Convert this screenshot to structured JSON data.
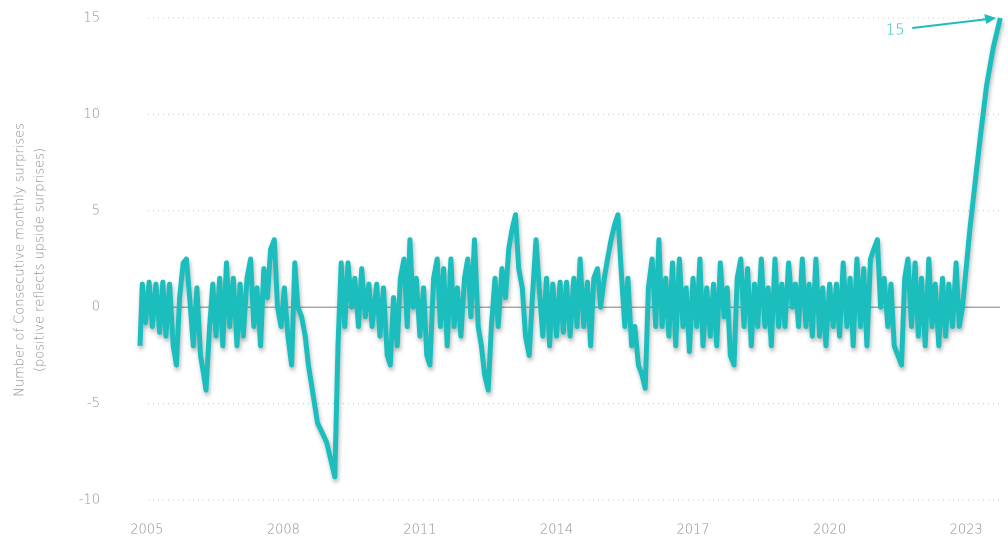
{
  "chart_data": {
    "type": "line",
    "ylabel": [
      "Number of Consecutive monthly surprises",
      "(positive reflects upside surprises)"
    ],
    "xlim": [
      2004.85,
      2023.92
    ],
    "xticks": [
      2005,
      2008,
      2011,
      2014,
      2017,
      2020,
      2023
    ],
    "ylim": [
      -10,
      15
    ],
    "yticks": [
      -10,
      -5,
      0,
      5,
      10,
      15
    ],
    "grid": true,
    "annotation": {
      "text": "15"
    },
    "series": [
      {
        "color": "#1dbdbd",
        "x": [
          2004.85,
          2004.9,
          2004.97,
          2005.05,
          2005.12,
          2005.2,
          2005.28,
          2005.35,
          2005.42,
          2005.5,
          2005.58,
          2005.65,
          2005.72,
          2005.8,
          2005.87,
          2005.95,
          2006.02,
          2006.1,
          2006.18,
          2006.25,
          2006.3,
          2006.38,
          2006.45,
          2006.52,
          2006.6,
          2006.67,
          2006.75,
          2006.82,
          2006.9,
          2006.98,
          2007.05,
          2007.12,
          2007.2,
          2007.28,
          2007.35,
          2007.42,
          2007.5,
          2007.57,
          2007.65,
          2007.72,
          2007.8,
          2007.87,
          2007.95,
          2008.02,
          2008.1,
          2008.18,
          2008.25,
          2008.32,
          2008.4,
          2008.48,
          2008.55,
          2008.65,
          2008.75,
          2008.85,
          2008.95,
          2009.05,
          2009.13,
          2009.2,
          2009.27,
          2009.35,
          2009.42,
          2009.5,
          2009.57,
          2009.65,
          2009.72,
          2009.8,
          2009.88,
          2009.95,
          2010.05,
          2010.12,
          2010.2,
          2010.28,
          2010.35,
          2010.42,
          2010.5,
          2010.57,
          2010.65,
          2010.72,
          2010.78,
          2010.85,
          2010.92,
          2011.0,
          2011.08,
          2011.15,
          2011.22,
          2011.3,
          2011.38,
          2011.45,
          2011.52,
          2011.6,
          2011.68,
          2011.75,
          2011.82,
          2011.9,
          2011.98,
          2012.05,
          2012.12,
          2012.2,
          2012.28,
          2012.35,
          2012.42,
          2012.5,
          2012.57,
          2012.65,
          2012.72,
          2012.8,
          2012.88,
          2012.95,
          2013.02,
          2013.1,
          2013.17,
          2013.25,
          2013.32,
          2013.4,
          2013.47,
          2013.55,
          2013.62,
          2013.7,
          2013.78,
          2013.85,
          2013.92,
          2014.0,
          2014.08,
          2014.15,
          2014.22,
          2014.3,
          2014.38,
          2014.45,
          2014.52,
          2014.6,
          2014.68,
          2014.75,
          2014.82,
          2014.9,
          2014.97,
          2015.05,
          2015.12,
          2015.2,
          2015.28,
          2015.35,
          2015.42,
          2015.5,
          2015.57,
          2015.65,
          2015.72,
          2015.8,
          2015.88,
          2015.95,
          2016.02,
          2016.1,
          2016.18,
          2016.25,
          2016.32,
          2016.4,
          2016.47,
          2016.55,
          2016.62,
          2016.7,
          2016.78,
          2016.85,
          2016.92,
          2017.0,
          2017.08,
          2017.15,
          2017.22,
          2017.3,
          2017.38,
          2017.45,
          2017.52,
          2017.6,
          2017.68,
          2017.75,
          2017.82,
          2017.9,
          2017.97,
          2018.05,
          2018.12,
          2018.2,
          2018.28,
          2018.35,
          2018.42,
          2018.5,
          2018.58,
          2018.65,
          2018.72,
          2018.8,
          2018.88,
          2018.95,
          2019.02,
          2019.1,
          2019.18,
          2019.25,
          2019.32,
          2019.4,
          2019.48,
          2019.55,
          2019.62,
          2019.7,
          2019.78,
          2019.85,
          2019.92,
          2020.0,
          2020.08,
          2020.15,
          2020.22,
          2020.3,
          2020.38,
          2020.45,
          2020.52,
          2020.6,
          2020.68,
          2020.75,
          2020.82,
          2020.9,
          2020.97,
          2021.05,
          2021.12,
          2021.2,
          2021.28,
          2021.35,
          2021.42,
          2021.5,
          2021.58,
          2021.65,
          2021.72,
          2021.8,
          2021.88,
          2021.95,
          2022.02,
          2022.1,
          2022.18,
          2022.25,
          2022.32,
          2022.4,
          2022.48,
          2022.55,
          2022.62,
          2022.7,
          2022.78,
          2022.85,
          2022.92,
          2023.0,
          2023.08,
          2023.2,
          2023.32,
          2023.45,
          2023.6,
          2023.75
        ],
        "values": [
          -2,
          1.2,
          -0.8,
          1.3,
          -1,
          1.2,
          -1.3,
          1.3,
          -1.5,
          1.2,
          -2,
          -3,
          0.5,
          2.3,
          2.5,
          0.2,
          -2,
          1,
          -2.5,
          -3.5,
          -4.3,
          -1,
          1.2,
          -1.5,
          1.5,
          -2,
          2.3,
          -1,
          1.5,
          -2,
          1.2,
          -1.5,
          1.5,
          2.5,
          -1,
          1,
          -2,
          2,
          0.5,
          3,
          3.5,
          0,
          -1,
          1,
          -1.5,
          -3,
          2.3,
          0,
          -0.5,
          -1.5,
          -3,
          -4.5,
          -6,
          -6.5,
          -7,
          -8,
          -8.8,
          -2,
          2.3,
          -1,
          2.3,
          0,
          1.5,
          -1,
          2,
          -0.5,
          1.2,
          -1,
          1.2,
          -1.5,
          1,
          -2.5,
          -3,
          0.5,
          -2,
          1.5,
          2.5,
          -1,
          3.5,
          0,
          1.5,
          -1.5,
          1,
          -2.5,
          -3,
          1.5,
          2.5,
          -1,
          2,
          -2,
          2.5,
          -1,
          1,
          -1.5,
          1.5,
          2.5,
          -0.5,
          3.5,
          -1,
          -2,
          -3.5,
          -4.3,
          -1,
          1.5,
          -1,
          2,
          0.5,
          3,
          4,
          4.8,
          2,
          1,
          -1.5,
          -2.5,
          0.5,
          3.5,
          1,
          -1.5,
          1.5,
          -2,
          1.2,
          -1.5,
          1.3,
          -1.3,
          1.3,
          -1.5,
          1.5,
          -1,
          2.5,
          -1,
          1.3,
          -2,
          1.5,
          2,
          0,
          1.5,
          2.5,
          3.5,
          4.3,
          4.8,
          2,
          -1,
          1.5,
          -2,
          -1,
          -3,
          -3.5,
          -4.2,
          1,
          2.5,
          -1,
          3.5,
          -1,
          1.5,
          -1.5,
          2.3,
          -2,
          2.5,
          -1,
          1,
          -2.3,
          1.5,
          -1,
          2.5,
          -2,
          1,
          -1.5,
          1.2,
          -2,
          2.3,
          -0.5,
          1,
          -2.5,
          -3,
          1.5,
          2.5,
          -1,
          2,
          -2,
          1.2,
          -1,
          2.5,
          -1,
          1,
          -2,
          2.5,
          -1,
          1.2,
          -1,
          2.3,
          0,
          1.2,
          -1,
          2.5,
          -1,
          1.2,
          -1.5,
          2.5,
          -1.5,
          1,
          -2,
          1.2,
          -1,
          1.2,
          -1.5,
          2.3,
          -1,
          1.5,
          -2,
          2.5,
          -1,
          2,
          -2,
          2.5,
          3,
          3.5,
          0,
          1.5,
          -1,
          1.2,
          -2,
          -2.5,
          -3,
          1.5,
          2.5,
          -1,
          2.3,
          -1.5,
          1.5,
          -2,
          2.5,
          -1,
          1.2,
          -2,
          1.5,
          -1.5,
          1.2,
          -1,
          2.3,
          -1,
          0,
          2,
          4,
          6.5,
          9,
          11.5,
          13.5,
          15
        ]
      }
    ]
  }
}
